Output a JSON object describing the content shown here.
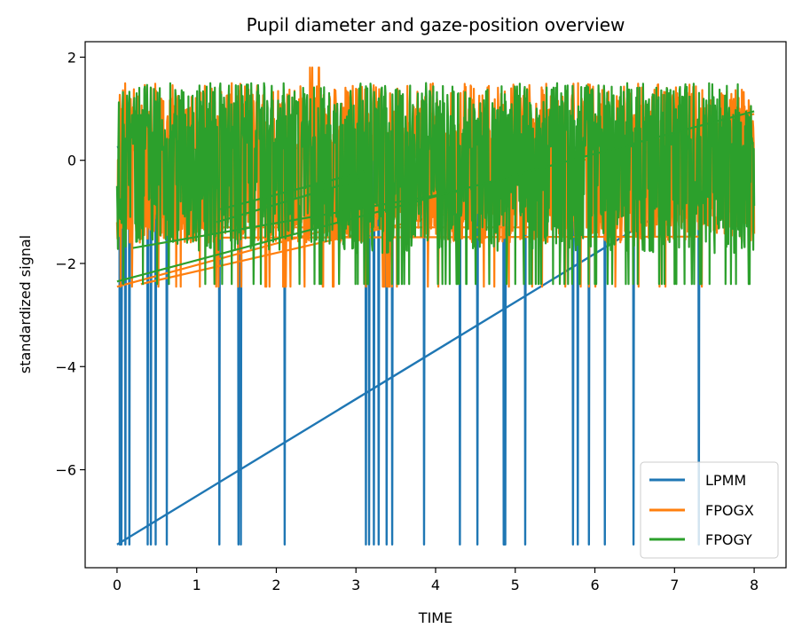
{
  "chart_data": {
    "type": "line",
    "title": "Pupil diameter and gaze-position overview",
    "xlabel": "TIME",
    "ylabel": "standardized signal",
    "xlim": [
      -0.4,
      8.4
    ],
    "ylim": [
      -7.9,
      2.3
    ],
    "xticks": [
      0,
      1,
      2,
      3,
      4,
      5,
      6,
      7,
      8
    ],
    "yticks": [
      -6,
      -4,
      -2,
      0,
      2
    ],
    "ytick_labels": [
      "−6",
      "−4",
      "−2",
      "0",
      "2"
    ],
    "grid": false,
    "legend_position": "lower-right",
    "series": [
      {
        "name": "LPMM",
        "color": "#1f77b4",
        "baseline": 0.25,
        "dropouts_x": [
          0.03,
          0.05,
          0.1,
          0.15,
          0.38,
          0.42,
          0.48,
          0.62,
          1.28,
          1.52,
          1.55,
          2.1,
          3.12,
          3.16,
          3.22,
          3.28,
          3.38,
          3.45,
          3.85,
          4.3,
          4.52,
          4.85,
          4.87,
          5.12,
          5.72,
          5.78,
          5.92,
          6.12,
          6.48,
          7.3
        ],
        "dropout_value": -7.45,
        "trend_line": [
          {
            "x": 0.0,
            "y": -7.45
          },
          {
            "x": 7.5,
            "y": -0.4
          }
        ]
      },
      {
        "name": "FPOGX",
        "color": "#ff7f0e",
        "band": [
          -1.9,
          1.8
        ],
        "dropout_value": -2.45,
        "trend_line": [
          {
            "x": 0.0,
            "y": -2.45
          },
          {
            "x": 8.0,
            "y": 0.9
          }
        ]
      },
      {
        "name": "FPOGY",
        "color": "#2ca02c",
        "band": [
          -1.9,
          1.6
        ],
        "dropout_value": -0.3,
        "trend_line": [
          {
            "x": 0.0,
            "y": -2.35
          },
          {
            "x": 8.0,
            "y": 0.95
          }
        ]
      }
    ]
  }
}
